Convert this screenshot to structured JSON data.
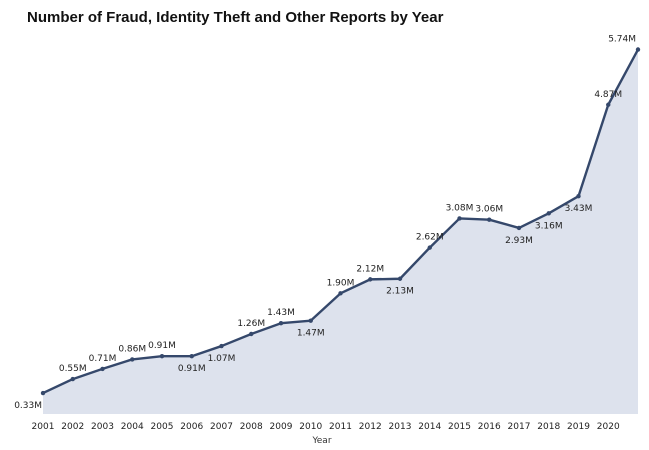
{
  "chart_data": {
    "type": "area",
    "title": "Number of Fraud, Identity Theft and Other Reports by Year",
    "xlabel": "Year",
    "ylabel": "",
    "x": [
      "2001",
      "2002",
      "2003",
      "2004",
      "2005",
      "2006",
      "2007",
      "2008",
      "2009",
      "2010",
      "2011",
      "2012",
      "2013",
      "2014",
      "2015",
      "2016",
      "2017",
      "2018",
      "2019",
      "2020",
      ""
    ],
    "series": [
      {
        "values": [
          0.33,
          0.55,
          0.71,
          0.86,
          0.91,
          0.91,
          1.07,
          1.26,
          1.43,
          1.47,
          1.9,
          2.12,
          2.13,
          2.62,
          3.08,
          3.06,
          2.93,
          3.16,
          3.43,
          4.87,
          5.74
        ],
        "labels": [
          "0.33M",
          "0.55M",
          "0.71M",
          "0.86M",
          "0.91M",
          "0.91M",
          "1.07M",
          "1.26M",
          "1.43M",
          "1.47M",
          "1.90M",
          "2.12M",
          "2.13M",
          "2.62M",
          "3.08M",
          "3.06M",
          "2.93M",
          "3.16M",
          "3.43M",
          "4.87M",
          "5.74M"
        ],
        "label_pos": [
          "below",
          "above",
          "above",
          "above",
          "above",
          "below",
          "below",
          "above",
          "above",
          "below",
          "above",
          "above",
          "below",
          "above",
          "above",
          "above",
          "below",
          "below",
          "below",
          "above",
          "above"
        ]
      }
    ],
    "ylim": [
      0,
      6.3
    ],
    "grid": false,
    "colors": {
      "line": "#35486b",
      "fill": "#dde2ed",
      "marker": "#35486b"
    }
  }
}
